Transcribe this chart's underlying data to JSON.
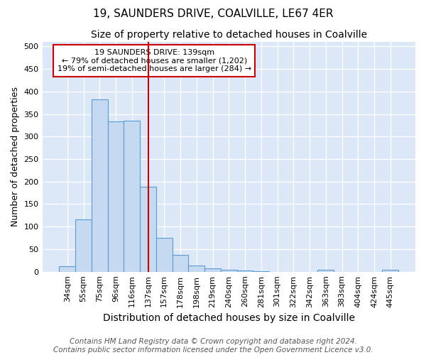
{
  "title": "19, SAUNDERS DRIVE, COALVILLE, LE67 4ER",
  "subtitle": "Size of property relative to detached houses in Coalville",
  "xlabel": "Distribution of detached houses by size in Coalville",
  "ylabel": "Number of detached properties",
  "categories": [
    "34sqm",
    "55sqm",
    "75sqm",
    "96sqm",
    "116sqm",
    "137sqm",
    "157sqm",
    "178sqm",
    "198sqm",
    "219sqm",
    "240sqm",
    "260sqm",
    "281sqm",
    "301sqm",
    "322sqm",
    "342sqm",
    "363sqm",
    "383sqm",
    "404sqm",
    "424sqm",
    "445sqm"
  ],
  "values": [
    12,
    116,
    383,
    334,
    335,
    188,
    75,
    38,
    13,
    8,
    4,
    2,
    1,
    0,
    0,
    0,
    4,
    0,
    0,
    0,
    4
  ],
  "bar_color": "#c5d9f0",
  "bar_edge_color": "#5b9bd5",
  "vline_x_index": 5,
  "vline_color": "#cc0000",
  "annotation_title": "19 SAUNDERS DRIVE: 139sqm",
  "annotation_line1": "← 79% of detached houses are smaller (1,202)",
  "annotation_line2": "19% of semi-detached houses are larger (284) →",
  "annotation_box_color": "#ffffff",
  "annotation_box_edge_color": "#cc0000",
  "ylim": [
    0,
    510
  ],
  "yticks": [
    0,
    50,
    100,
    150,
    200,
    250,
    300,
    350,
    400,
    450,
    500
  ],
  "bg_color": "#dce8f8",
  "footer_line1": "Contains HM Land Registry data © Crown copyright and database right 2024.",
  "footer_line2": "Contains public sector information licensed under the Open Government Licence v3.0.",
  "title_fontsize": 11,
  "subtitle_fontsize": 10,
  "xlabel_fontsize": 10,
  "ylabel_fontsize": 9,
  "tick_fontsize": 8,
  "footer_fontsize": 7.5
}
